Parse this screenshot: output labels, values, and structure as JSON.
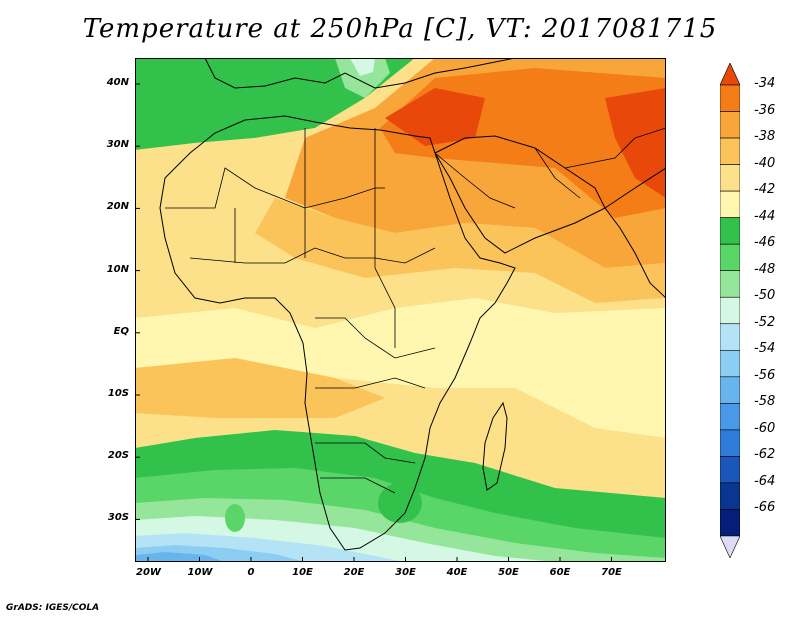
{
  "title": "Temperature at 250hPa [C], VT: 2017081715",
  "credit": "GrADS: IGES/COLA",
  "lat_labels": [
    "40N",
    "30N",
    "20N",
    "10N",
    "EQ",
    "10S",
    "20S",
    "30S"
  ],
  "lon_labels": [
    "20W",
    "10W",
    "0",
    "10E",
    "20E",
    "30E",
    "40E",
    "50E",
    "60E",
    "70E"
  ],
  "colorbar": {
    "labels": [
      "-34",
      "-36",
      "-38",
      "-40",
      "-42",
      "-44",
      "-46",
      "-48",
      "-50",
      "-52",
      "-54",
      "-56",
      "-58",
      "-60",
      "-62",
      "-64",
      "-66"
    ],
    "colors": [
      "#e8480a",
      "#f57d17",
      "#f8a53a",
      "#fbc45b",
      "#fde08a",
      "#fff6b0",
      "#32c24b",
      "#5ad668",
      "#95e69a",
      "#d5f8e5",
      "#b5e3f6",
      "#8ccdf2",
      "#68b5ee",
      "#4a98e8",
      "#2e7bd8",
      "#1a57b8",
      "#0a3690",
      "#071e78",
      "#dcdcf6"
    ]
  }
}
